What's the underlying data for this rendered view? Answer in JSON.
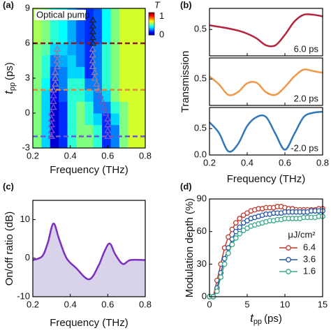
{
  "chart_data": [
    {
      "type": "heatmap",
      "panel_label": "(a)",
      "annotation": "Optical pump",
      "xlabel": "Frequency (THz)",
      "ylabel": {
        "symbol": "t",
        "subscript": "pp",
        "unit": "(ps)"
      },
      "xlim": [
        0.2,
        0.8
      ],
      "ylim": [
        -3,
        9
      ],
      "xticks": [
        0.2,
        0.4,
        0.6,
        0.8
      ],
      "yticks": [
        -3,
        0,
        3,
        6,
        9
      ],
      "colorbar_label": "T",
      "zlim": [
        0,
        1.2
      ],
      "zticks": [
        0,
        1
      ],
      "z": [
        [
          0.6,
          0.4,
          0.1,
          0.2,
          0.5,
          0.6,
          0.6,
          0.5,
          0.2,
          0.3,
          0.6,
          0.7,
          0.7
        ],
        [
          0.6,
          0.4,
          0.1,
          0.2,
          0.5,
          0.6,
          0.6,
          0.5,
          0.2,
          0.3,
          0.6,
          0.7,
          0.7
        ],
        [
          0.6,
          0.4,
          0.1,
          0.2,
          0.5,
          0.6,
          0.5,
          0.4,
          0.2,
          0.4,
          0.6,
          0.7,
          0.7
        ],
        [
          0.6,
          0.4,
          0.1,
          0.2,
          0.5,
          0.6,
          0.5,
          0.3,
          0.3,
          0.5,
          0.6,
          0.7,
          0.7
        ],
        [
          0.6,
          0.4,
          0.15,
          0.25,
          0.5,
          0.5,
          0.4,
          0.3,
          0.4,
          0.6,
          0.7,
          0.7,
          0.7
        ],
        [
          0.6,
          0.45,
          0.2,
          0.3,
          0.5,
          0.5,
          0.3,
          0.3,
          0.5,
          0.6,
          0.7,
          0.7,
          0.7
        ],
        [
          0.6,
          0.5,
          0.25,
          0.3,
          0.4,
          0.4,
          0.2,
          0.3,
          0.5,
          0.6,
          0.7,
          0.7,
          0.7
        ],
        [
          0.6,
          0.5,
          0.3,
          0.35,
          0.4,
          0.3,
          0.2,
          0.3,
          0.5,
          0.6,
          0.7,
          0.7,
          0.7
        ],
        [
          0.6,
          0.55,
          0.4,
          0.4,
          0.35,
          0.3,
          0.2,
          0.3,
          0.5,
          0.6,
          0.7,
          0.7,
          0.7
        ],
        [
          0.65,
          0.6,
          0.5,
          0.45,
          0.35,
          0.25,
          0.2,
          0.25,
          0.45,
          0.6,
          0.7,
          0.7,
          0.7
        ],
        [
          0.65,
          0.6,
          0.5,
          0.45,
          0.35,
          0.25,
          0.2,
          0.25,
          0.45,
          0.6,
          0.7,
          0.7,
          0.7
        ],
        [
          0.65,
          0.6,
          0.5,
          0.45,
          0.35,
          0.25,
          0.2,
          0.25,
          0.45,
          0.6,
          0.7,
          0.7,
          0.7
        ]
      ],
      "series": [
        {
          "color": "#7b52c7",
          "x": [
            0.3,
            0.3,
            0.3,
            0.3,
            0.3,
            0.31,
            0.31,
            0.31,
            0.6,
            0.6,
            0.6,
            0.6,
            0.59,
            0.58,
            0.57,
            0.56
          ],
          "values": [
            -2,
            -1.5,
            -1,
            -0.5,
            0,
            0.5,
            1,
            1.5,
            -2,
            -1.5,
            -1,
            -0.5,
            0,
            0.5,
            1,
            1.5
          ]
        },
        {
          "color": "#9a7a9e",
          "x": [
            0.31,
            0.32,
            0.32,
            0.32,
            0.33,
            0.33,
            0.33,
            0.33,
            0.55,
            0.54,
            0.53,
            0.53,
            0.52,
            0.52,
            0.52,
            0.52
          ],
          "values": [
            2,
            2.5,
            3,
            3.5,
            4,
            4.5,
            5,
            5.5,
            2,
            2.5,
            3,
            3.5,
            4,
            4.5,
            5,
            5.5
          ]
        },
        {
          "color": "#222222",
          "x": [
            0.52,
            0.52,
            0.52,
            0.52,
            0.52
          ],
          "values": [
            6,
            6.5,
            7,
            7.5,
            8
          ]
        }
      ],
      "hlines": [
        {
          "value": 6,
          "color": "#8b1a1a"
        },
        {
          "value": 2,
          "color": "#e0893c"
        },
        {
          "value": -2,
          "color": "#6a5acd"
        }
      ]
    },
    {
      "type": "multi-panel-line",
      "panel_label": "(b)",
      "xlabel": "Frequency (THz)",
      "ylabel": "Transmission",
      "xlim": [
        0.2,
        0.8
      ],
      "xticks": [
        0.2,
        0.4,
        0.6,
        0.8
      ],
      "x": [
        0.2,
        0.25,
        0.3,
        0.35,
        0.4,
        0.45,
        0.5,
        0.55,
        0.6,
        0.65,
        0.7,
        0.75,
        0.8
      ],
      "panels": [
        {
          "label": "6.0 ps",
          "color": "#b5243c",
          "ylim": [
            0,
            0.9
          ],
          "yticks": [
            {
              "value": 0.5,
              "label": "0.5"
            }
          ],
          "values": [
            0.58,
            0.55,
            0.52,
            0.48,
            0.42,
            0.33,
            0.2,
            0.2,
            0.4,
            0.65,
            0.78,
            0.78,
            0.75
          ]
        },
        {
          "label": "2.0 ps",
          "color": "#f0984a",
          "ylim": [
            0,
            0.9
          ],
          "yticks": [
            {
              "value": 0.5,
              "label": "0.5"
            }
          ],
          "values": [
            0.55,
            0.4,
            0.2,
            0.25,
            0.42,
            0.43,
            0.25,
            0.2,
            0.35,
            0.55,
            0.68,
            0.65,
            0.62
          ]
        },
        {
          "label": "-2.0 ps",
          "color": "#2f78b8",
          "ylim": [
            0,
            0.9
          ],
          "yticks": [
            {
              "value": 0,
              "label": "0.0"
            },
            {
              "value": 0.5,
              "label": "0.5"
            }
          ],
          "values": [
            0.62,
            0.42,
            0.07,
            0.2,
            0.55,
            0.72,
            0.72,
            0.4,
            0.1,
            0.4,
            0.72,
            0.8,
            0.82
          ]
        }
      ]
    },
    {
      "type": "area",
      "panel_label": "(c)",
      "xlabel": "Frequency (THz)",
      "ylabel": "On/off ratio (dB)",
      "xlim": [
        0.2,
        0.8
      ],
      "xticks": [
        0.2,
        0.4,
        0.6,
        0.8
      ],
      "ylim": [
        -10,
        15
      ],
      "yticks": [
        -10,
        0,
        10
      ],
      "color": "#7b2fbf",
      "fill": "#d8d2ea",
      "x": [
        0.2,
        0.25,
        0.28,
        0.31,
        0.34,
        0.38,
        0.43,
        0.5,
        0.55,
        0.58,
        0.61,
        0.64,
        0.68,
        0.72,
        0.8
      ],
      "values": [
        -0.5,
        0.5,
        4,
        9,
        5,
        0,
        -2.5,
        -5.5,
        -2,
        1.5,
        3.8,
        1,
        -1.5,
        -0.5,
        -0.5
      ]
    },
    {
      "type": "line",
      "panel_label": "(d)",
      "xlabel": {
        "symbol": "t",
        "subscript": "pp",
        "unit": "(ps)"
      },
      "ylabel": "Modulation depth (%)",
      "xlim": [
        0,
        15
      ],
      "xticks": [
        0,
        5,
        10,
        15
      ],
      "ylim": [
        0,
        90
      ],
      "yticks": [
        0,
        30,
        60,
        90
      ],
      "legend": "lower right",
      "legend_title": "μJ/cm²",
      "x": [
        0,
        0.5,
        1,
        1.5,
        2,
        2.5,
        3,
        3.5,
        4,
        4.5,
        5,
        5.5,
        6,
        6.5,
        7,
        7.5,
        8,
        8.5,
        9,
        9.5,
        10,
        10.5,
        11,
        11.5,
        12,
        12.5,
        13,
        13.5,
        14,
        14.5,
        15
      ],
      "series": [
        {
          "name": "6.4",
          "color": "#c0392b",
          "values": [
            0,
            0,
            15,
            30,
            45,
            55,
            62,
            68,
            72,
            75,
            77,
            79,
            80,
            81,
            81,
            82,
            82,
            82,
            83,
            83,
            82,
            81,
            81,
            80,
            80,
            80,
            80,
            80,
            80,
            81,
            81
          ]
        },
        {
          "name": "3.6",
          "color": "#2255aa",
          "values": [
            0,
            0,
            8,
            22,
            35,
            45,
            53,
            60,
            64,
            68,
            70,
            72,
            73,
            74,
            75,
            76,
            76,
            77,
            77,
            77,
            78,
            78,
            78,
            78,
            78,
            78,
            78,
            79,
            79,
            79,
            79
          ]
        },
        {
          "name": "1.6",
          "color": "#3aa88a",
          "values": [
            0,
            0,
            5,
            18,
            30,
            40,
            48,
            54,
            58,
            61,
            63,
            65,
            66,
            67,
            68,
            69,
            70,
            70,
            71,
            71,
            72,
            72,
            72,
            72,
            72,
            73,
            73,
            73,
            73,
            74,
            74
          ]
        }
      ]
    }
  ]
}
